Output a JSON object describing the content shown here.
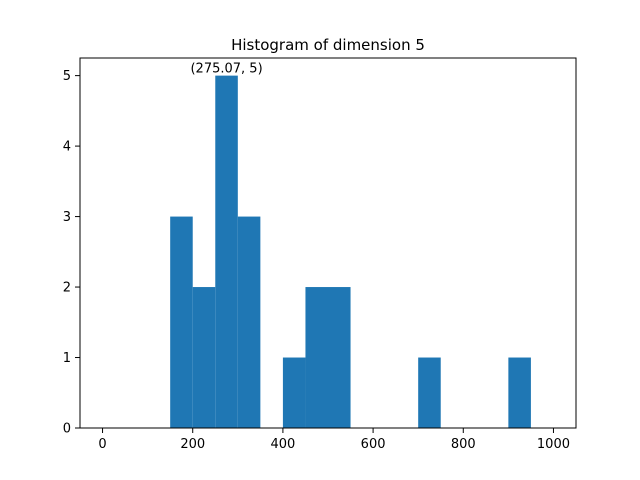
{
  "chart_data": {
    "type": "bar",
    "title": "Histogram of dimension 5",
    "xlabel": "",
    "ylabel": "",
    "xlim": [
      -50,
      1050
    ],
    "ylim": [
      0,
      5.25
    ],
    "xticks": [
      0,
      200,
      400,
      600,
      800,
      1000
    ],
    "yticks": [
      0,
      1,
      2,
      3,
      4,
      5
    ],
    "bin_edges": [
      0,
      50,
      100,
      150,
      200,
      250,
      300,
      350,
      400,
      450,
      500,
      550,
      600,
      650,
      700,
      750,
      800,
      850,
      900,
      950,
      1000
    ],
    "counts": [
      0,
      0,
      0,
      3,
      2,
      5,
      3,
      0,
      1,
      2,
      2,
      0,
      0,
      0,
      1,
      0,
      0,
      0,
      1,
      0
    ],
    "bar_color": "#1f77b4",
    "grid": false,
    "annotation": {
      "text": "(275.07, 5)",
      "x": 275.07,
      "y": 5
    }
  }
}
